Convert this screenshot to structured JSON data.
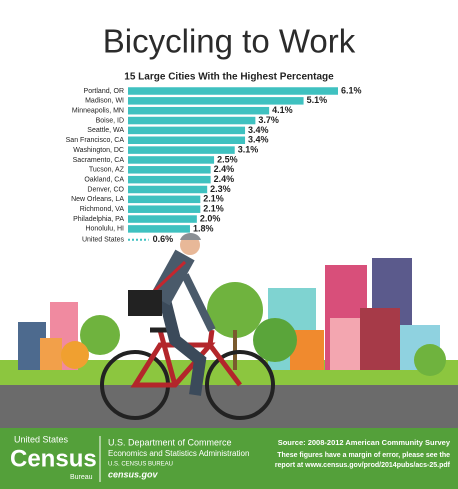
{
  "chart_data": {
    "type": "bar",
    "orientation": "horizontal",
    "title": "Bicycling to Work",
    "subtitle": "15 Large Cities With the Highest Percentage",
    "categories": [
      "Portland, OR",
      "Madison, WI",
      "Minneapolis, MN",
      "Boise, ID",
      "Seattle, WA",
      "San Francisco, CA",
      "Washington, DC",
      "Sacramento, CA",
      "Tucson, AZ",
      "Oakland, CA",
      "Denver, CO",
      "New Orleans, LA",
      "Richmond, VA",
      "Philadelphia, PA",
      "Honolulu, HI"
    ],
    "values": [
      6.1,
      5.1,
      4.1,
      3.7,
      3.4,
      3.4,
      3.1,
      2.5,
      2.4,
      2.4,
      2.3,
      2.1,
      2.1,
      2.0,
      1.8
    ],
    "value_labels": [
      "6.1%",
      "5.1%",
      "4.1%",
      "3.7%",
      "3.4%",
      "3.4%",
      "3.1%",
      "2.5%",
      "2.4%",
      "2.4%",
      "2.3%",
      "2.1%",
      "2.1%",
      "2.0%",
      "1.8%"
    ],
    "color": "#3fc1c0",
    "reference": {
      "name": "United States",
      "value": 0.6,
      "value_label": "0.6%",
      "style": "dashed"
    }
  },
  "footer": {
    "agency_top": "United States",
    "agency_main": "Census",
    "agency_bottom": "Bureau",
    "dept": "U.S. Department of Commerce",
    "admin": "Economics and Statistics Administration",
    "bureau": "U.S. CENSUS BUREAU",
    "site": "census.gov",
    "source": "Source: 2008-2012 American Community Survey",
    "note1": "These figures have a margin of error, please see the",
    "note2": "report at www.census.gov/prod/2014pubs/acs-25.pdf"
  }
}
